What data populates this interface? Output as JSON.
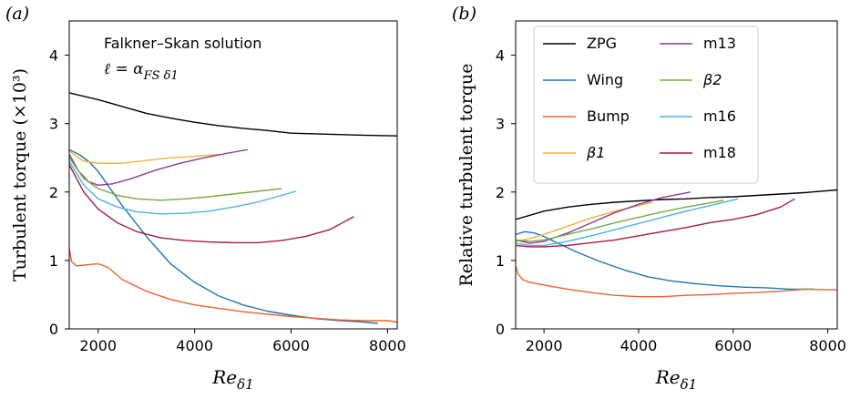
{
  "chart_data": [
    {
      "type": "line",
      "panel_label": "(a)",
      "ylabel": "Turbulent torque (×10³)",
      "xlabel": "Re_δ1",
      "xlim": [
        1400,
        8200
      ],
      "ylim": [
        0,
        4.5
      ],
      "xticks": [
        2000,
        4000,
        6000,
        8000
      ],
      "yticks": [
        0,
        1,
        2,
        3,
        4
      ],
      "annotation": [
        "Falkner–Skan solution",
        "ℓ = α_FS δ1"
      ],
      "series": [
        {
          "name": "ZPG",
          "color": "#000000",
          "x": [
            1400,
            2000,
            2500,
            3000,
            3500,
            4000,
            4500,
            5000,
            5500,
            6000,
            6500,
            7000,
            7500,
            8200
          ],
          "y": [
            3.45,
            3.35,
            3.25,
            3.15,
            3.08,
            3.02,
            2.97,
            2.93,
            2.9,
            2.86,
            2.85,
            2.84,
            2.83,
            2.82
          ]
        },
        {
          "name": "Wing",
          "color": "#1f77b4",
          "x": [
            1400,
            1600,
            1800,
            2000,
            2200,
            2500,
            3000,
            3500,
            4000,
            4500,
            5000,
            5500,
            6000,
            6500,
            7000,
            7500,
            7800
          ],
          "y": [
            2.62,
            2.55,
            2.45,
            2.3,
            2.1,
            1.8,
            1.35,
            0.95,
            0.68,
            0.48,
            0.35,
            0.26,
            0.2,
            0.15,
            0.12,
            0.1,
            0.08
          ]
        },
        {
          "name": "Bump",
          "color": "#e8642c",
          "x": [
            1400,
            1450,
            1550,
            1700,
            2000,
            2200,
            2500,
            3000,
            3500,
            4000,
            5000,
            6000,
            7000,
            7500,
            8000,
            8200
          ],
          "y": [
            1.18,
            0.98,
            0.92,
            0.93,
            0.95,
            0.9,
            0.72,
            0.55,
            0.43,
            0.35,
            0.25,
            0.18,
            0.13,
            0.12,
            0.12,
            0.1
          ]
        },
        {
          "name": "β1",
          "color": "#eeb23d",
          "x": [
            1400,
            1700,
            2000,
            2500,
            3000,
            3500,
            4000,
            4500
          ],
          "y": [
            2.6,
            2.45,
            2.42,
            2.42,
            2.46,
            2.5,
            2.52,
            2.55
          ]
        },
        {
          "name": "m13",
          "color": "#8d3a9d",
          "x": [
            1400,
            1600,
            1800,
            2000,
            2300,
            2700,
            3200,
            3700,
            4200,
            4700,
            5100
          ],
          "y": [
            2.55,
            2.3,
            2.15,
            2.1,
            2.12,
            2.2,
            2.32,
            2.42,
            2.5,
            2.57,
            2.62
          ]
        },
        {
          "name": "β2",
          "color": "#78ab40",
          "x": [
            1400,
            1700,
            2000,
            2400,
            2800,
            3300,
            3800,
            4300,
            4800,
            5300,
            5800
          ],
          "y": [
            2.5,
            2.2,
            2.05,
            1.95,
            1.9,
            1.88,
            1.9,
            1.93,
            1.97,
            2.01,
            2.05
          ]
        },
        {
          "name": "m16",
          "color": "#4ab3e4",
          "x": [
            1400,
            1700,
            2000,
            2400,
            2800,
            3300,
            3800,
            4300,
            4800,
            5300,
            5800,
            6100
          ],
          "y": [
            2.45,
            2.1,
            1.9,
            1.78,
            1.71,
            1.68,
            1.69,
            1.72,
            1.78,
            1.85,
            1.95,
            2.01
          ]
        },
        {
          "name": "m18",
          "color": "#a41e3c",
          "x": [
            1400,
            1700,
            2000,
            2400,
            2800,
            3300,
            3800,
            4300,
            4800,
            5300,
            5800,
            6300,
            6800,
            7300
          ],
          "y": [
            2.4,
            2.0,
            1.75,
            1.55,
            1.42,
            1.33,
            1.29,
            1.27,
            1.26,
            1.26,
            1.29,
            1.35,
            1.45,
            1.64
          ]
        }
      ]
    },
    {
      "type": "line",
      "panel_label": "(b)",
      "ylabel": "Relative turbulent torque",
      "xlabel": "Re_δ1",
      "xlim": [
        1400,
        8200
      ],
      "ylim": [
        0,
        4.5
      ],
      "xticks": [
        2000,
        4000,
        6000,
        8000
      ],
      "yticks": [
        0,
        1,
        2,
        3,
        4
      ],
      "legend": "top-left, two columns",
      "series": [
        {
          "name": "ZPG",
          "color": "#000000",
          "x": [
            1400,
            2000,
            2500,
            3000,
            3500,
            4000,
            4500,
            5000,
            5500,
            6000,
            6500,
            7000,
            7500,
            8200
          ],
          "y": [
            1.6,
            1.72,
            1.78,
            1.82,
            1.85,
            1.87,
            1.89,
            1.9,
            1.92,
            1.93,
            1.95,
            1.97,
            1.99,
            2.03
          ]
        },
        {
          "name": "Wing",
          "color": "#1f77b4",
          "x": [
            1400,
            1600,
            1800,
            2000,
            2300,
            2700,
            3200,
            3700,
            4200,
            4700,
            5200,
            5700,
            6200,
            6700,
            7200,
            7700
          ],
          "y": [
            1.38,
            1.42,
            1.4,
            1.35,
            1.25,
            1.12,
            0.98,
            0.86,
            0.76,
            0.7,
            0.66,
            0.63,
            0.61,
            0.6,
            0.58,
            0.58
          ]
        },
        {
          "name": "Bump",
          "color": "#e8642c",
          "x": [
            1400,
            1450,
            1550,
            1700,
            2000,
            2500,
            3000,
            3500,
            4000,
            4500,
            5000,
            5500,
            6000,
            6500,
            7000,
            7500,
            8200
          ],
          "y": [
            0.92,
            0.8,
            0.72,
            0.68,
            0.64,
            0.58,
            0.53,
            0.49,
            0.47,
            0.47,
            0.49,
            0.5,
            0.52,
            0.53,
            0.55,
            0.58,
            0.57
          ]
        },
        {
          "name": "β1",
          "color": "#eeb23d",
          "x": [
            1400,
            1700,
            2000,
            2500,
            3000,
            3500,
            4000,
            4300
          ],
          "y": [
            1.28,
            1.32,
            1.38,
            1.5,
            1.62,
            1.72,
            1.8,
            1.85
          ]
        },
        {
          "name": "m13",
          "color": "#8d3a9d",
          "x": [
            1400,
            1700,
            2000,
            2500,
            3000,
            3500,
            4000,
            4500,
            5100
          ],
          "y": [
            1.3,
            1.25,
            1.28,
            1.4,
            1.55,
            1.7,
            1.82,
            1.92,
            2.0
          ]
        },
        {
          "name": "β2",
          "color": "#78ab40",
          "x": [
            1400,
            1700,
            2000,
            2500,
            3000,
            3500,
            4000,
            4500,
            5000,
            5500,
            5800
          ],
          "y": [
            1.3,
            1.28,
            1.3,
            1.38,
            1.46,
            1.55,
            1.63,
            1.71,
            1.78,
            1.84,
            1.88
          ]
        },
        {
          "name": "m16",
          "color": "#4ab3e4",
          "x": [
            1400,
            1700,
            2000,
            2500,
            3000,
            3500,
            4000,
            4500,
            5000,
            5500,
            6100
          ],
          "y": [
            1.25,
            1.22,
            1.22,
            1.28,
            1.36,
            1.45,
            1.54,
            1.63,
            1.72,
            1.8,
            1.9
          ]
        },
        {
          "name": "m18",
          "color": "#a41e3c",
          "x": [
            1400,
            1700,
            2000,
            2500,
            3000,
            3500,
            4000,
            4500,
            5000,
            5500,
            6000,
            6500,
            7000,
            7300
          ],
          "y": [
            1.22,
            1.2,
            1.2,
            1.22,
            1.26,
            1.3,
            1.36,
            1.42,
            1.48,
            1.55,
            1.6,
            1.67,
            1.78,
            1.9
          ]
        }
      ]
    }
  ]
}
